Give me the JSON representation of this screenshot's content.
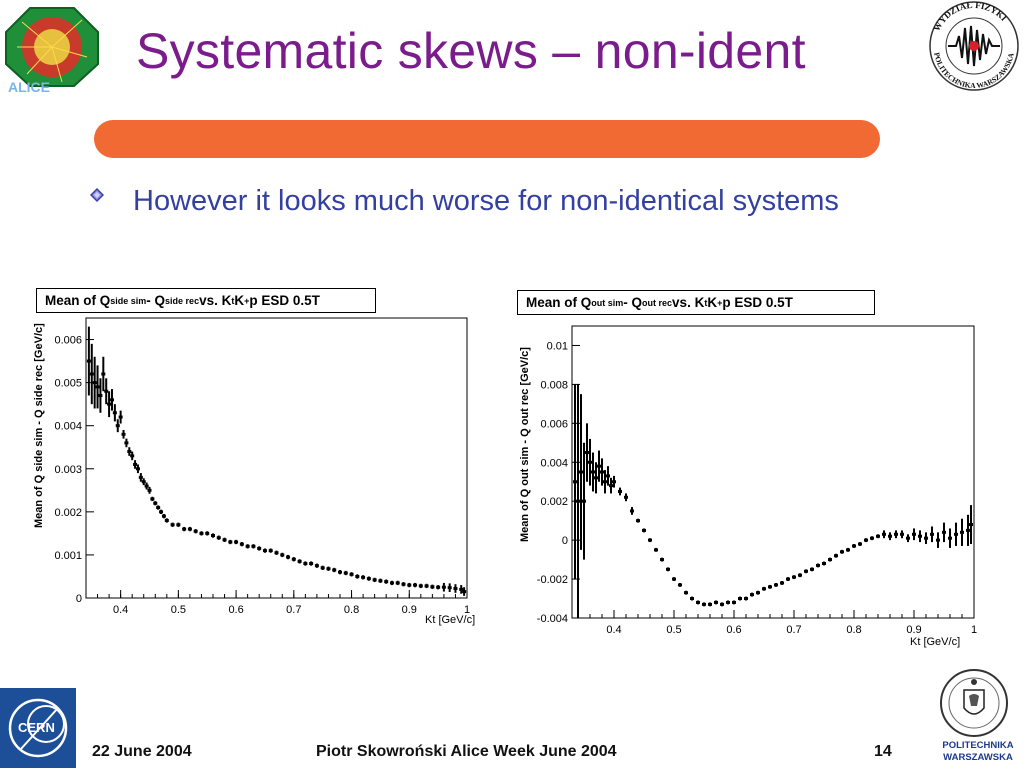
{
  "slide": {
    "title": "Systematic skews – non-ident",
    "bullet": "However it looks much worse for non-identical systems",
    "colors": {
      "title": "#7b1c8c",
      "accent_bar": "#f26a33",
      "bullet_text": "#3340a0"
    }
  },
  "logos": {
    "left": "ALICE",
    "right_stamp": "WYDZIAŁ FIZYKI · POLITECHNIKA WARSZAWSKA",
    "cern": "CERN",
    "pw_label_1": "POLITECHNIKA",
    "pw_label_2": "WARSZAWSKA"
  },
  "footer": {
    "date": "22 June 2004",
    "center": "Piotr Skowroński  Alice Week June  2004",
    "page": "14"
  },
  "chart_data": [
    {
      "type": "scatter",
      "title": "Mean of Q_side sim - Q_side rec vs. K_t   K+p ESD 0.5T",
      "title_parts": {
        "a": "Mean of Q",
        "a_sub": "side sim",
        "b": " - Q",
        "b_sub": "side rec",
        "c": " vs. K",
        "c_sub": "t",
        "d": "   K",
        "d_sup": "+",
        "e": "p ESD 0.5T"
      },
      "xlabel": "K_t [GeV/c]",
      "ylabel": "Mean of Q_side sim - Q_side rec [GeV/c]",
      "xlim": [
        0.34,
        1.0
      ],
      "ylim": [
        0,
        0.0065
      ],
      "xticks": [
        "0.4",
        "0.5",
        "0.6",
        "0.7",
        "0.8",
        "0.9",
        "1"
      ],
      "xtick_values": [
        0.4,
        0.5,
        0.6,
        0.7,
        0.8,
        0.9,
        1.0
      ],
      "yticks": [
        "0",
        "0.001",
        "0.002",
        "0.003",
        "0.004",
        "0.005",
        "0.006"
      ],
      "ytick_values": [
        0,
        0.001,
        0.002,
        0.003,
        0.004,
        0.005,
        0.006
      ],
      "x": [
        0.345,
        0.35,
        0.355,
        0.36,
        0.365,
        0.37,
        0.375,
        0.38,
        0.385,
        0.39,
        0.395,
        0.4,
        0.405,
        0.41,
        0.415,
        0.42,
        0.425,
        0.43,
        0.435,
        0.44,
        0.445,
        0.45,
        0.455,
        0.46,
        0.465,
        0.47,
        0.475,
        0.48,
        0.49,
        0.5,
        0.51,
        0.52,
        0.53,
        0.54,
        0.55,
        0.56,
        0.57,
        0.58,
        0.59,
        0.6,
        0.61,
        0.62,
        0.63,
        0.64,
        0.65,
        0.66,
        0.67,
        0.68,
        0.69,
        0.7,
        0.71,
        0.72,
        0.73,
        0.74,
        0.75,
        0.76,
        0.77,
        0.78,
        0.79,
        0.8,
        0.81,
        0.82,
        0.83,
        0.84,
        0.85,
        0.86,
        0.87,
        0.88,
        0.89,
        0.9,
        0.91,
        0.92,
        0.93,
        0.94,
        0.95,
        0.96,
        0.97,
        0.98,
        0.99,
        0.995
      ],
      "y": [
        0.0055,
        0.0052,
        0.005,
        0.0049,
        0.0047,
        0.0052,
        0.0048,
        0.0045,
        0.0046,
        0.0043,
        0.004,
        0.0042,
        0.0038,
        0.0036,
        0.0034,
        0.0033,
        0.0031,
        0.003,
        0.0028,
        0.0027,
        0.0026,
        0.0025,
        0.0023,
        0.0022,
        0.0021,
        0.002,
        0.0019,
        0.0018,
        0.0017,
        0.0017,
        0.0016,
        0.0016,
        0.00155,
        0.0015,
        0.0015,
        0.00145,
        0.0014,
        0.00135,
        0.0013,
        0.0013,
        0.00125,
        0.0012,
        0.0012,
        0.00115,
        0.0011,
        0.0011,
        0.00105,
        0.001,
        0.00095,
        0.0009,
        0.00085,
        0.0008,
        0.0008,
        0.00075,
        0.0007,
        0.00068,
        0.00065,
        0.0006,
        0.00058,
        0.00055,
        0.0005,
        0.00048,
        0.00045,
        0.00042,
        0.0004,
        0.00038,
        0.00035,
        0.00035,
        0.00032,
        0.0003,
        0.0003,
        0.00028,
        0.00028,
        0.00026,
        0.00025,
        0.00025,
        0.00024,
        0.00022,
        0.0002,
        0.00015
      ],
      "yerr": [
        0.0008,
        0.0007,
        0.0006,
        0.0005,
        0.0004,
        0.0004,
        0.0003,
        0.0003,
        0.00025,
        0.0002,
        0.00015,
        0.00015,
        0.0001,
        0.0001,
        0.0001,
        0.0001,
        0.0001,
        0.0001,
        0.0001,
        8e-05,
        8e-05,
        8e-05,
        5e-05,
        5e-05,
        5e-05,
        5e-05,
        5e-05,
        5e-05,
        5e-05,
        5e-05,
        5e-05,
        5e-05,
        5e-05,
        5e-05,
        5e-05,
        5e-05,
        5e-05,
        5e-05,
        5e-05,
        5e-05,
        5e-05,
        5e-05,
        5e-05,
        5e-05,
        5e-05,
        5e-05,
        5e-05,
        5e-05,
        5e-05,
        5e-05,
        5e-05,
        5e-05,
        5e-05,
        5e-05,
        5e-05,
        5e-05,
        5e-05,
        5e-05,
        5e-05,
        5e-05,
        5e-05,
        5e-05,
        5e-05,
        5e-05,
        5e-05,
        5e-05,
        5e-05,
        5e-05,
        5e-05,
        5e-05,
        5e-05,
        5e-05,
        5e-05,
        5e-05,
        5e-05,
        0.0001,
        0.0001,
        0.0001,
        0.0001,
        0.0001
      ]
    },
    {
      "type": "scatter",
      "title": "Mean of Q_out sim - Q_out rec vs. K_t   K+p ESD 0.5T",
      "title_parts": {
        "a": "Mean of Q",
        "a_sub": "out sim",
        "b": " - Q",
        "b_sub": "out rec",
        "c": " vs. K",
        "c_sub": "t",
        "d": "   K",
        "d_sup": "+",
        "e": "p ESD 0.5T"
      },
      "xlabel": "K_t [GeV/c]",
      "ylabel": "Mean of Q_out sim - Q_out rec [GeV/c]",
      "xlim": [
        0.33,
        1.0
      ],
      "ylim": [
        -0.004,
        0.011
      ],
      "xticks": [
        "0.4",
        "0.5",
        "0.6",
        "0.7",
        "0.8",
        "0.9",
        "1"
      ],
      "xtick_values": [
        0.4,
        0.5,
        0.6,
        0.7,
        0.8,
        0.9,
        1.0
      ],
      "yticks": [
        "-0.004",
        "-0.002",
        "0",
        "0.002",
        "0.004",
        "0.006",
        "0.008",
        "0.01"
      ],
      "ytick_values": [
        -0.004,
        -0.002,
        0,
        0.002,
        0.004,
        0.006,
        0.008,
        0.01
      ],
      "x": [
        0.335,
        0.34,
        0.345,
        0.35,
        0.355,
        0.36,
        0.365,
        0.37,
        0.375,
        0.38,
        0.385,
        0.39,
        0.395,
        0.4,
        0.41,
        0.42,
        0.43,
        0.44,
        0.45,
        0.46,
        0.47,
        0.48,
        0.49,
        0.5,
        0.51,
        0.52,
        0.53,
        0.54,
        0.55,
        0.56,
        0.57,
        0.58,
        0.59,
        0.6,
        0.61,
        0.62,
        0.63,
        0.64,
        0.65,
        0.66,
        0.67,
        0.68,
        0.69,
        0.7,
        0.71,
        0.72,
        0.73,
        0.74,
        0.75,
        0.76,
        0.77,
        0.78,
        0.79,
        0.8,
        0.81,
        0.82,
        0.83,
        0.84,
        0.85,
        0.86,
        0.87,
        0.88,
        0.89,
        0.9,
        0.91,
        0.92,
        0.93,
        0.94,
        0.95,
        0.96,
        0.97,
        0.98,
        0.99,
        0.995
      ],
      "y": [
        0.003,
        0.002,
        0.0035,
        0.002,
        0.0045,
        0.004,
        0.0035,
        0.0032,
        0.0038,
        0.0035,
        0.003,
        0.0033,
        0.0028,
        0.003,
        0.0025,
        0.0022,
        0.0015,
        0.001,
        0.0005,
        0.0,
        -0.0005,
        -0.001,
        -0.0015,
        -0.002,
        -0.0023,
        -0.0027,
        -0.003,
        -0.0032,
        -0.0033,
        -0.0033,
        -0.0032,
        -0.0033,
        -0.0032,
        -0.0032,
        -0.003,
        -0.003,
        -0.0028,
        -0.0027,
        -0.0025,
        -0.0024,
        -0.0023,
        -0.0022,
        -0.002,
        -0.0019,
        -0.0018,
        -0.0016,
        -0.0015,
        -0.0013,
        -0.0012,
        -0.001,
        -0.0008,
        -0.0006,
        -0.0005,
        -0.0003,
        -0.0002,
        0.0,
        0.0001,
        0.0002,
        0.0003,
        0.0002,
        0.0003,
        0.0003,
        0.0001,
        0.0003,
        0.0002,
        0.0001,
        0.0003,
        0.0,
        0.0004,
        0.0001,
        0.0003,
        0.0004,
        0.0005,
        0.0008
      ],
      "yerr": [
        0.005,
        0.006,
        0.004,
        0.003,
        0.0015,
        0.0012,
        0.001,
        0.0008,
        0.0008,
        0.0007,
        0.0006,
        0.0005,
        0.0004,
        0.0003,
        0.0002,
        0.0002,
        0.0002,
        0.0001,
        0.0001,
        0.0001,
        0.0001,
        0.0001,
        0.0001,
        0.0001,
        0.0001,
        0.0001,
        0.0001,
        0.0001,
        0.0001,
        0.0001,
        0.0001,
        0.0001,
        0.0001,
        0.0001,
        0.0001,
        0.0001,
        0.0001,
        0.0001,
        0.0001,
        0.0001,
        0.0001,
        0.0001,
        0.0001,
        0.0001,
        0.0001,
        0.0001,
        0.0001,
        0.0001,
        0.0001,
        0.0001,
        0.0001,
        0.0001,
        0.0001,
        0.0001,
        0.0001,
        0.0001,
        0.0001,
        0.0001,
        0.0002,
        0.0002,
        0.0002,
        0.0002,
        0.0002,
        0.0003,
        0.0003,
        0.0003,
        0.0004,
        0.0004,
        0.0005,
        0.0005,
        0.0006,
        0.0007,
        0.0008,
        0.001
      ]
    }
  ]
}
